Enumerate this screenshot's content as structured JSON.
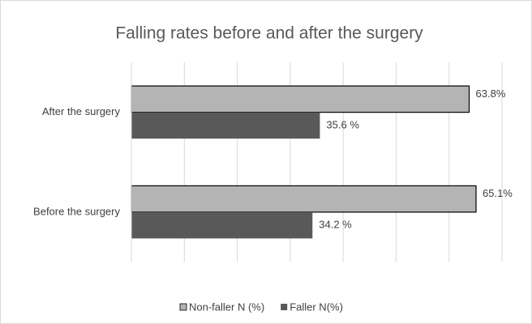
{
  "chart_data": {
    "type": "hbar",
    "title": "Falling rates before and after the surgery",
    "categories": [
      "Before the surgery",
      "After the surgery"
    ],
    "series": [
      {
        "name": "Non-faller N (%)",
        "color": "#b4b4b4",
        "values": [
          65.1,
          63.8
        ],
        "value_labels": [
          "65.1%",
          "63.8%"
        ]
      },
      {
        "name": "Faller  N(%)",
        "color": "#595959",
        "values": [
          34.2,
          35.6
        ],
        "value_labels": [
          "34.2 %",
          "35.6 %"
        ]
      }
    ],
    "xlim": [
      0,
      70
    ],
    "xticks": [
      0,
      10,
      20,
      30,
      40,
      50,
      60,
      70
    ],
    "grid": true,
    "legend": "bottom"
  }
}
